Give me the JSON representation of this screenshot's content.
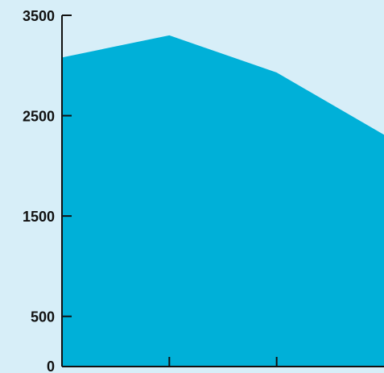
{
  "chart_data": {
    "type": "area",
    "title": "",
    "xlabel": "",
    "ylabel": "",
    "x": [
      1,
      2,
      3,
      4
    ],
    "series": [
      {
        "values": [
          3080,
          3300,
          2930,
          2310
        ]
      }
    ],
    "ylim": [
      0,
      3500
    ],
    "yticks": [
      0,
      500,
      1500,
      2500,
      3500
    ],
    "ytick_labels": [
      "0",
      "500",
      "1500",
      "2500",
      "3500"
    ],
    "xticks": [
      2,
      3
    ],
    "grid": false,
    "legend": "none"
  },
  "colors": {
    "background": "#d7eef8",
    "fill": "#00b0d8",
    "axis": "#111111"
  }
}
